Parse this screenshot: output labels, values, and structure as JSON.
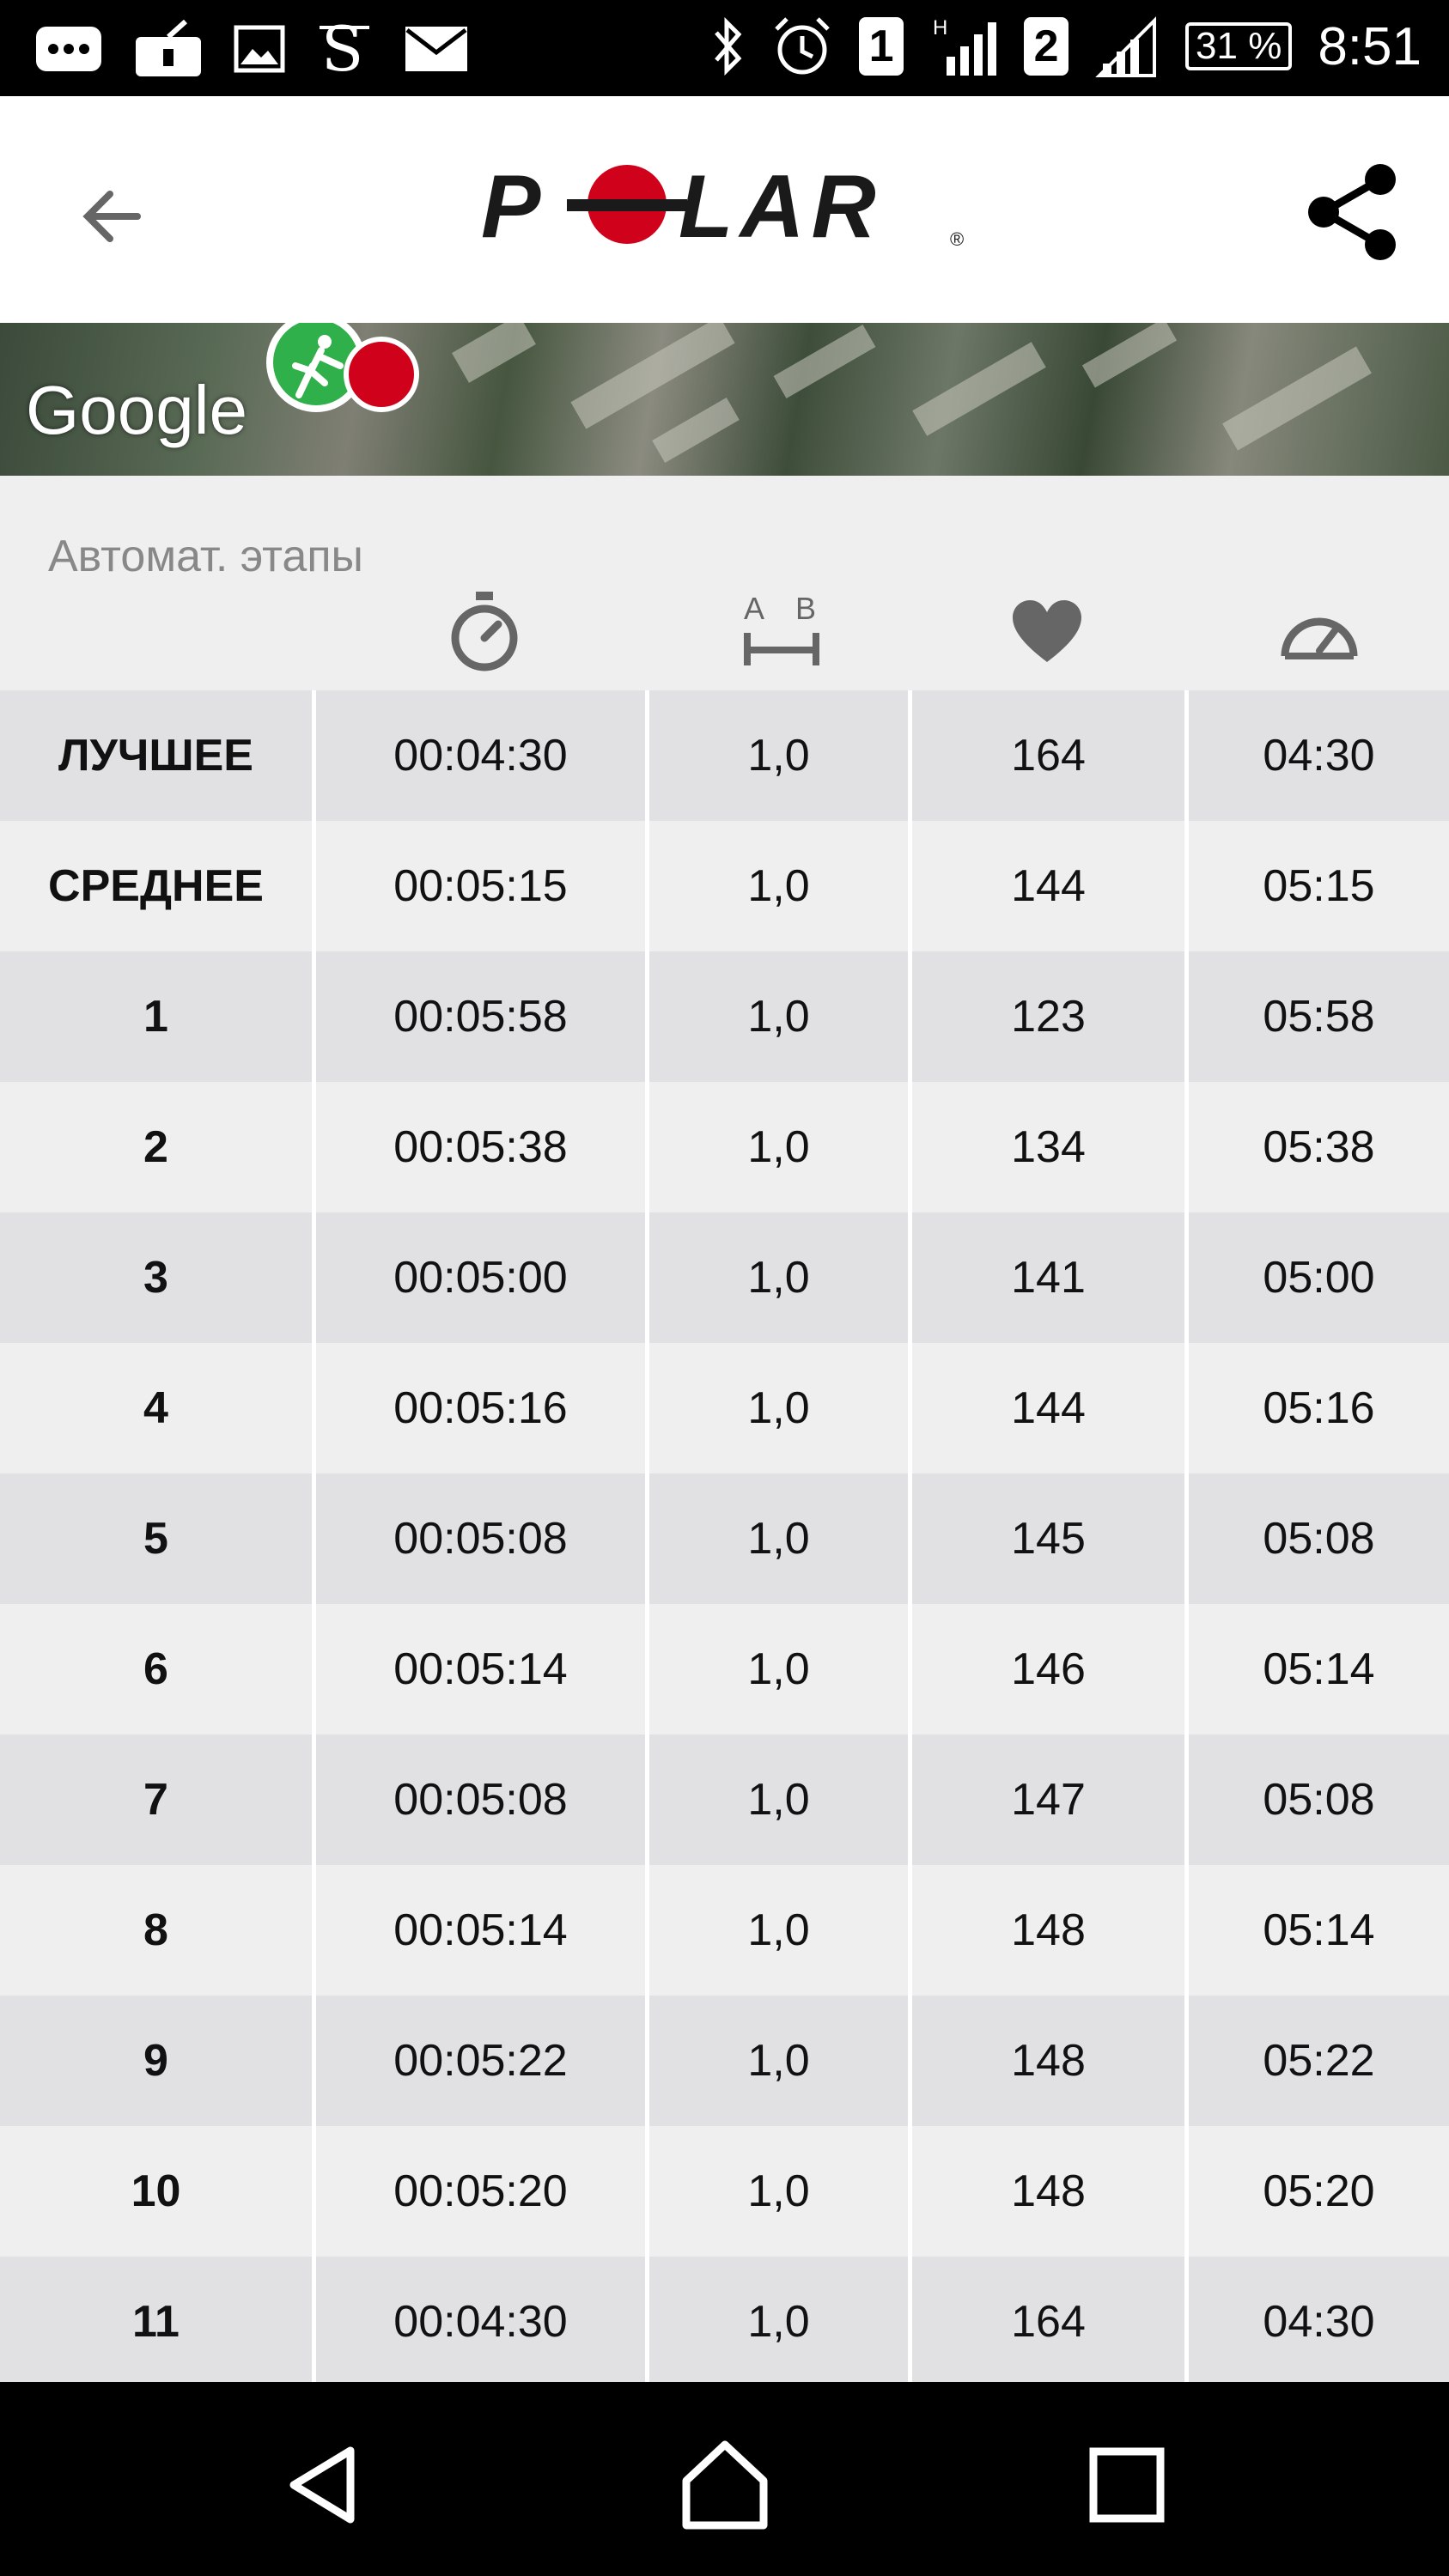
{
  "status_bar": {
    "sim1": "1",
    "sim2": "2",
    "net_indicator": "H",
    "battery": "31 %",
    "time": "8:51",
    "icons": [
      "more-icon",
      "keyboard-icon",
      "image-icon",
      "s-app-icon",
      "mail-icon",
      "bluetooth-icon",
      "alarm-icon",
      "signal-icon"
    ]
  },
  "app_bar": {
    "logo_text": "POLAR",
    "back_icon": "arrow-back-icon",
    "share_icon": "share-icon"
  },
  "map": {
    "attribution": "Google"
  },
  "laps": {
    "section_title": "Автомат. этапы",
    "columns": [
      {
        "icon": "stopwatch-icon"
      },
      {
        "icon": "distance-ab-icon"
      },
      {
        "icon": "heart-icon"
      },
      {
        "icon": "speedometer-icon"
      }
    ],
    "rows": [
      {
        "label": "ЛУЧШЕЕ",
        "time": "00:04:30",
        "distance": "1,0",
        "hr": "164",
        "pace": "04:30"
      },
      {
        "label": "СРЕДНЕЕ",
        "time": "00:05:15",
        "distance": "1,0",
        "hr": "144",
        "pace": "05:15"
      },
      {
        "label": "1",
        "time": "00:05:58",
        "distance": "1,0",
        "hr": "123",
        "pace": "05:58"
      },
      {
        "label": "2",
        "time": "00:05:38",
        "distance": "1,0",
        "hr": "134",
        "pace": "05:38"
      },
      {
        "label": "3",
        "time": "00:05:00",
        "distance": "1,0",
        "hr": "141",
        "pace": "05:00"
      },
      {
        "label": "4",
        "time": "00:05:16",
        "distance": "1,0",
        "hr": "144",
        "pace": "05:16"
      },
      {
        "label": "5",
        "time": "00:05:08",
        "distance": "1,0",
        "hr": "145",
        "pace": "05:08"
      },
      {
        "label": "6",
        "time": "00:05:14",
        "distance": "1,0",
        "hr": "146",
        "pace": "05:14"
      },
      {
        "label": "7",
        "time": "00:05:08",
        "distance": "1,0",
        "hr": "147",
        "pace": "05:08"
      },
      {
        "label": "8",
        "time": "00:05:14",
        "distance": "1,0",
        "hr": "148",
        "pace": "05:14"
      },
      {
        "label": "9",
        "time": "00:05:22",
        "distance": "1,0",
        "hr": "148",
        "pace": "05:22"
      },
      {
        "label": "10",
        "time": "00:05:20",
        "distance": "1,0",
        "hr": "148",
        "pace": "05:20"
      },
      {
        "label": "11",
        "time": "00:04:30",
        "distance": "1,0",
        "hr": "164",
        "pace": "04:30"
      }
    ]
  },
  "nav_bar": {
    "icons": [
      "nav-back-icon",
      "nav-home-icon",
      "nav-recents-icon"
    ]
  },
  "colors": {
    "polar_red": "#d0021b",
    "runner_green": "#2fb04a",
    "row_odd": "#e1e1e4",
    "row_even": "#efefef"
  }
}
